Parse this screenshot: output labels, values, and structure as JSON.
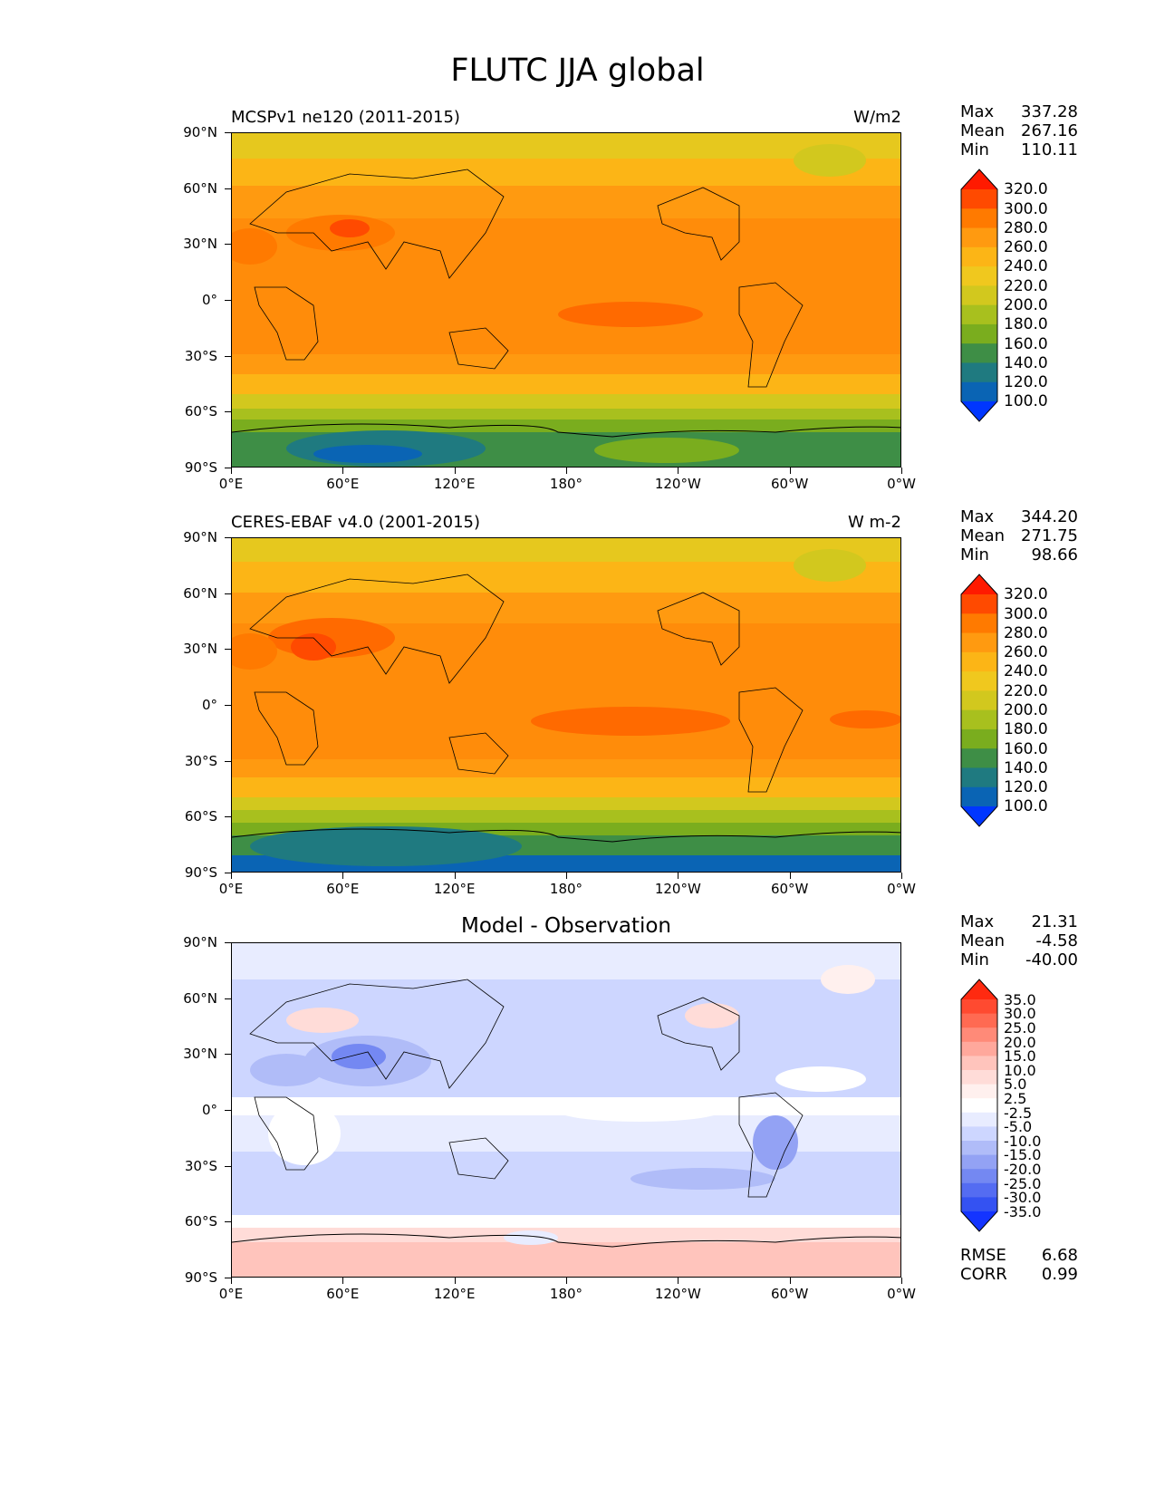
{
  "title": "FLUTC JJA global",
  "lat_labels": [
    "90°N",
    "60°N",
    "30°N",
    "0°",
    "30°S",
    "60°S",
    "90°S"
  ],
  "lon_labels": [
    "0°E",
    "60°E",
    "120°E",
    "180°",
    "120°W",
    "60°W",
    "0°W"
  ],
  "panels": [
    {
      "left_title": "MCSPv1 ne120 (2011-2015)",
      "right_title": "W/m2",
      "stats": {
        "max_label": "Max",
        "max": "337.28",
        "mean_label": "Mean",
        "mean": "267.16",
        "min_label": "Min",
        "min": "110.11"
      }
    },
    {
      "left_title": "CERES-EBAF v4.0 (2001-2015)",
      "right_title": "W m-2",
      "stats": {
        "max_label": "Max",
        "max": "344.20",
        "mean_label": "Mean",
        "mean": "271.75",
        "min_label": "Min",
        "min": "98.66"
      }
    },
    {
      "center_title": "Model - Observation",
      "stats": {
        "max_label": "Max",
        "max": "21.31",
        "mean_label": "Mean",
        "mean": "-4.58",
        "min_label": "Min",
        "min": "-40.00"
      },
      "metrics": {
        "rmse_label": "RMSE",
        "rmse": "6.68",
        "corr_label": "CORR",
        "corr": "0.99"
      }
    }
  ],
  "colorbar_main": {
    "labels": [
      "320.0",
      "300.0",
      "280.0",
      "260.0",
      "240.0",
      "220.0",
      "200.0",
      "180.0",
      "160.0",
      "140.0",
      "120.0",
      "100.0"
    ],
    "colors": [
      "#ff1a00",
      "#ff4a00",
      "#ff7a00",
      "#ff9a10",
      "#fcb516",
      "#f0c81e",
      "#d2c81e",
      "#a8c01e",
      "#7aad1e",
      "#3e8e46",
      "#1f7a80",
      "#0a64b4",
      "#0036ff"
    ]
  },
  "colorbar_diff": {
    "labels": [
      "35.0",
      "30.0",
      "25.0",
      "20.0",
      "15.0",
      "10.0",
      "5.0",
      "2.5",
      "-2.5",
      "-5.0",
      "-10.0",
      "-15.0",
      "-20.0",
      "-25.0",
      "-30.0",
      "-35.0"
    ],
    "colors": [
      "#ff2a10",
      "#ff4a30",
      "#ff6a52",
      "#ff8a78",
      "#ffa89c",
      "#ffc4bc",
      "#ffdcd8",
      "#fff0ee",
      "#ffffff",
      "#e8ecff",
      "#cdd6ff",
      "#b0bcf8",
      "#93a2f4",
      "#7488f2",
      "#546cf2",
      "#3452f2",
      "#1434ff"
    ]
  }
}
